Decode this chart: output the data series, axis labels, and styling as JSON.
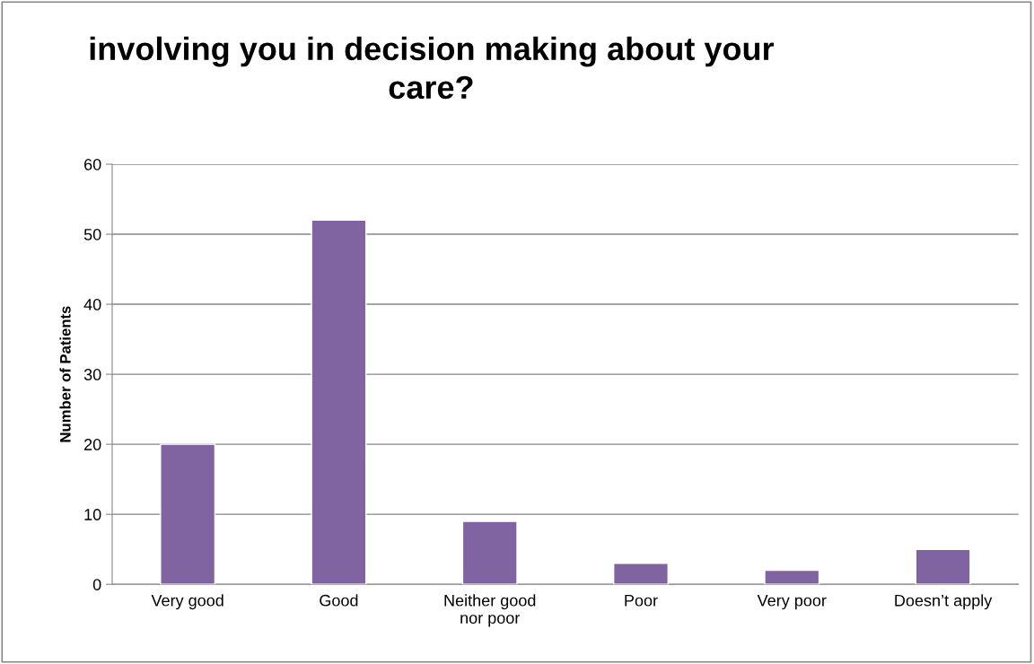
{
  "chart_data": {
    "type": "bar",
    "title": "involving you in decision making about your care?",
    "ylabel": "Number of Patients",
    "categories": [
      "Very good",
      "Good",
      "Neither good nor poor",
      "Poor",
      "Very poor",
      "Doesn’t apply"
    ],
    "values": [
      20,
      52,
      9,
      3,
      2,
      5
    ],
    "color": "#8064a2",
    "ylim": [
      0,
      60
    ],
    "yticks": [
      0,
      10,
      20,
      30,
      40,
      50,
      60
    ],
    "grid": "y"
  }
}
